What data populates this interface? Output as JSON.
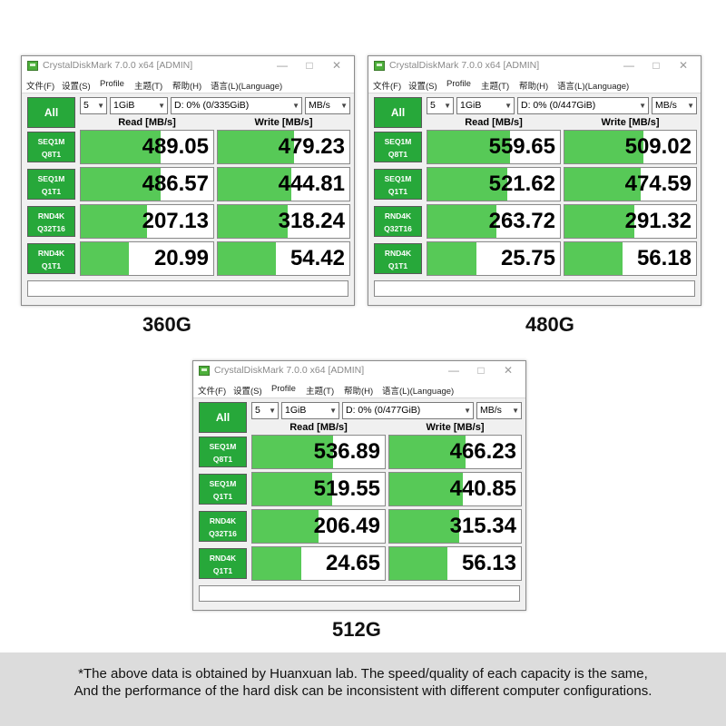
{
  "windows": [
    {
      "title": "CrystalDiskMark 7.0.0 x64 [ADMIN]",
      "menu": [
        "文件(F)",
        "设置(S)",
        "Profile",
        "主题(T)",
        "帮助(H)",
        "语言(L)(Language)"
      ],
      "window_controls": [
        "—",
        "□",
        "✕"
      ],
      "all_label": "All",
      "count": "5",
      "size": "1GiB",
      "drive": "D: 0% (0/335GiB)",
      "unit": "MB/s",
      "read_header": "Read [MB/s]",
      "write_header": "Write [MB/s]",
      "rows": [
        {
          "line1": "SEQ1M",
          "line2": "Q8T1",
          "read": "489.05",
          "write": "479.23",
          "read_level": 0.6,
          "write_level": 0.58
        },
        {
          "line1": "SEQ1M",
          "line2": "Q1T1",
          "read": "486.57",
          "write": "444.81",
          "read_level": 0.6,
          "write_level": 0.56
        },
        {
          "line1": "RND4K",
          "line2": "Q32T16",
          "read": "207.13",
          "write": "318.24",
          "read_level": 0.5,
          "write_level": 0.53
        },
        {
          "line1": "RND4K",
          "line2": "Q1T1",
          "read": "20.99",
          "write": "54.42",
          "read_level": 0.36,
          "write_level": 0.44
        }
      ],
      "caption": "360G"
    },
    {
      "title": "CrystalDiskMark 7.0.0 x64 [ADMIN]",
      "menu": [
        "文件(F)",
        "设置(S)",
        "Profile",
        "主题(T)",
        "帮助(H)",
        "语言(L)(Language)"
      ],
      "window_controls": [
        "—",
        "□",
        "✕"
      ],
      "all_label": "All",
      "count": "5",
      "size": "1GiB",
      "drive": "D: 0% (0/447GiB)",
      "unit": "MB/s",
      "read_header": "Read [MB/s]",
      "write_header": "Write [MB/s]",
      "rows": [
        {
          "line1": "SEQ1M",
          "line2": "Q8T1",
          "read": "559.65",
          "write": "509.02",
          "read_level": 0.62,
          "write_level": 0.6
        },
        {
          "line1": "SEQ1M",
          "line2": "Q1T1",
          "read": "521.62",
          "write": "474.59",
          "read_level": 0.6,
          "write_level": 0.58
        },
        {
          "line1": "RND4K",
          "line2": "Q32T16",
          "read": "263.72",
          "write": "291.32",
          "read_level": 0.52,
          "write_level": 0.53
        },
        {
          "line1": "RND4K",
          "line2": "Q1T1",
          "read": "25.75",
          "write": "56.18",
          "read_level": 0.37,
          "write_level": 0.44
        }
      ],
      "caption": "480G"
    },
    {
      "title": "CrystalDiskMark 7.0.0 x64 [ADMIN]",
      "menu": [
        "文件(F)",
        "设置(S)",
        "Profile",
        "主题(T)",
        "帮助(H)",
        "语言(L)(Language)"
      ],
      "window_controls": [
        "—",
        "□",
        "✕"
      ],
      "all_label": "All",
      "count": "5",
      "size": "1GiB",
      "drive": "D: 0% (0/477GiB)",
      "unit": "MB/s",
      "read_header": "Read [MB/s]",
      "write_header": "Write [MB/s]",
      "rows": [
        {
          "line1": "SEQ1M",
          "line2": "Q8T1",
          "read": "536.89",
          "write": "466.23",
          "read_level": 0.61,
          "write_level": 0.58
        },
        {
          "line1": "SEQ1M",
          "line2": "Q1T1",
          "read": "519.55",
          "write": "440.85",
          "read_level": 0.6,
          "write_level": 0.56
        },
        {
          "line1": "RND4K",
          "line2": "Q32T16",
          "read": "206.49",
          "write": "315.34",
          "read_level": 0.5,
          "write_level": 0.53
        },
        {
          "line1": "RND4K",
          "line2": "Q1T1",
          "read": "24.65",
          "write": "56.13",
          "read_level": 0.37,
          "write_level": 0.44
        }
      ],
      "caption": "512G"
    }
  ],
  "footer": {
    "line1": "*The above data is obtained by Huanxuan lab. The speed/quality of each capacity is the same,",
    "line2": "And the performance of the hard disk can be inconsistent with different computer configurations."
  },
  "colors": {
    "accent_green": "#27a83a",
    "bar_green": "#57c957",
    "footer_bg": "#dcdcdc"
  },
  "icons": {
    "app": "crystaldiskmark-app-icon",
    "dropdown": "chevron-down-icon"
  }
}
